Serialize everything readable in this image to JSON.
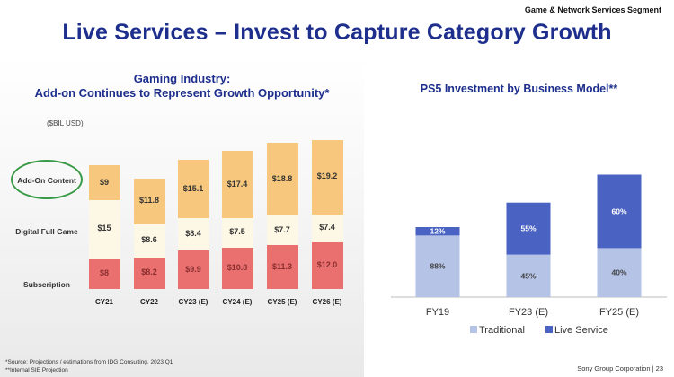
{
  "header": {
    "segment": "Game & Network Services Segment",
    "title": "Live Services – Invest to Capture Category Growth"
  },
  "chart_data": [
    {
      "type": "bar",
      "stacked": true,
      "title_line1": "Gaming Industry:",
      "title_line2": "Add-on Continues to Represent Growth Opportunity*",
      "unit_label": "($BIL USD)",
      "categories": [
        "CY21",
        "CY22",
        "CY23 (E)",
        "CY24 (E)",
        "CY25 (E)",
        "CY26 (E)"
      ],
      "series": [
        {
          "name": "Subscription",
          "values": [
            8,
            8.2,
            9.9,
            10.8,
            11.3,
            12.0
          ],
          "labels": [
            "$8",
            "$8.2",
            "$9.9",
            "$10.8",
            "$11.3",
            "$12.0"
          ],
          "color": "#ea6f6f",
          "text_color": "#8a2f2f"
        },
        {
          "name": "Digital Full Game",
          "values": [
            15,
            8.6,
            8.4,
            7.5,
            7.7,
            7.4
          ],
          "labels": [
            "$15",
            "$8.6",
            "$8.4",
            "$7.5",
            "$7.7",
            "$7.4"
          ],
          "color": "#fdf8e6",
          "text_color": "#333333"
        },
        {
          "name": "Add-On Content",
          "values": [
            9,
            11.8,
            15.1,
            17.4,
            18.8,
            19.2
          ],
          "labels": [
            "$9",
            "$11.8",
            "$15.1",
            "$17.4",
            "$18.8",
            "$19.2"
          ],
          "color": "#f6c77c",
          "text_color": "#333333"
        }
      ],
      "highlight_color": "#3a9a47"
    },
    {
      "type": "bar",
      "stacked": true,
      "title": "PS5 Investment by Business Model**",
      "categories": [
        "FY19",
        "FY23 (E)",
        "FY25 (E)"
      ],
      "series": [
        {
          "name": "Traditional",
          "values": [
            88,
            45,
            40
          ],
          "labels": [
            "88%",
            "45%",
            "40%"
          ],
          "color": "#b4c3e6"
        },
        {
          "name": "Live Service",
          "values": [
            12,
            55,
            60
          ],
          "labels": [
            "12%",
            "55%",
            "60%"
          ],
          "color": "#4a62c2"
        }
      ],
      "relative_totals": [
        1.0,
        1.35,
        1.75
      ],
      "legend": [
        "Traditional",
        "Live Service"
      ],
      "legend_position": "bottom"
    }
  ],
  "footnotes": {
    "line1": "*Source: Projections / estimations from IDG Consulting, 2023 Q1",
    "line2": "**Internal SIE Projection"
  },
  "footer": {
    "text": "Sony Group Corporation | 23"
  }
}
